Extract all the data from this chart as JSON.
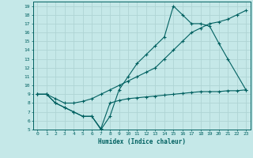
{
  "xlabel": "Humidex (Indice chaleur)",
  "background_color": "#c5e8e8",
  "grid_color": "#afd4d4",
  "line_color": "#006060",
  "xlim": [
    -0.5,
    23.5
  ],
  "ylim": [
    5,
    19.5
  ],
  "xticks": [
    0,
    1,
    2,
    3,
    4,
    5,
    6,
    7,
    8,
    9,
    10,
    11,
    12,
    13,
    14,
    15,
    16,
    17,
    18,
    19,
    20,
    21,
    22,
    23
  ],
  "yticks": [
    5,
    6,
    7,
    8,
    9,
    10,
    11,
    12,
    13,
    14,
    15,
    16,
    17,
    18,
    19
  ],
  "line1_x": [
    0,
    1,
    2,
    3,
    4,
    5,
    6,
    7,
    8,
    9,
    10,
    11,
    12,
    13,
    14,
    15,
    16,
    17,
    18,
    19,
    20,
    21,
    23
  ],
  "line1_y": [
    9,
    9,
    8,
    7.5,
    7,
    6.5,
    6.5,
    5,
    6.5,
    9.5,
    11,
    12.5,
    13.5,
    14.5,
    15.5,
    19,
    18,
    17,
    17,
    16.7,
    14.8,
    13,
    9.5
  ],
  "line2_x": [
    0,
    1,
    2,
    3,
    4,
    5,
    6,
    7,
    8,
    9,
    10,
    11,
    12,
    13,
    14,
    15,
    16,
    17,
    18,
    19,
    20,
    21,
    22,
    23
  ],
  "line2_y": [
    9,
    9,
    8.5,
    8,
    8,
    8.2,
    8.5,
    9,
    9.5,
    10,
    10.5,
    11,
    11.5,
    12,
    13,
    14,
    15,
    16,
    16.5,
    17,
    17.2,
    17.5,
    18,
    18.5
  ],
  "line3_x": [
    0,
    1,
    2,
    3,
    4,
    5,
    6,
    7,
    8,
    9,
    10,
    11,
    12,
    13,
    14,
    15,
    16,
    17,
    18,
    19,
    20,
    21,
    22,
    23
  ],
  "line3_y": [
    9,
    9,
    8,
    7.5,
    7,
    6.5,
    6.5,
    5.1,
    8,
    8.3,
    8.5,
    8.6,
    8.7,
    8.8,
    8.9,
    9,
    9.1,
    9.2,
    9.3,
    9.3,
    9.3,
    9.4,
    9.4,
    9.5
  ]
}
